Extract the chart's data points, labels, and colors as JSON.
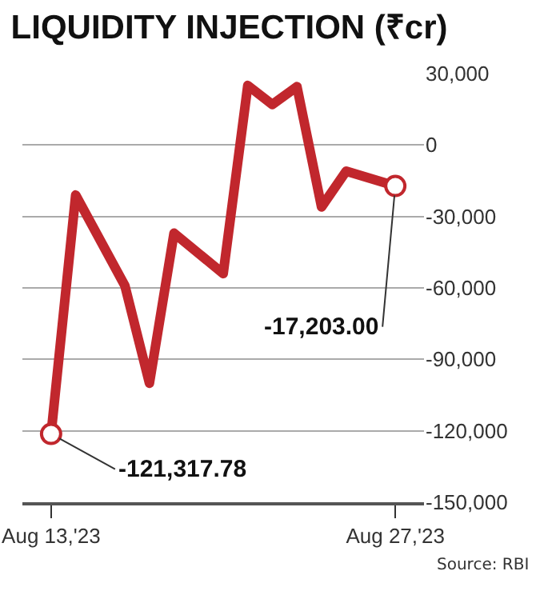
{
  "chart_data": {
    "type": "line",
    "title": "LIQUIDITY INJECTION (₹cr)",
    "x": [
      "2023-08-13",
      "2023-08-14",
      "2023-08-16",
      "2023-08-17",
      "2023-08-18",
      "2023-08-20",
      "2023-08-21",
      "2023-08-22",
      "2023-08-23",
      "2023-08-24",
      "2023-08-25",
      "2023-08-27"
    ],
    "series": [
      {
        "color": "#c1272d",
        "values": [
          -121317.78,
          -21000,
          -59000,
          -100000,
          -37000,
          -54000,
          25000,
          17000,
          24500,
          -26000,
          -11000,
          -17203.0
        ]
      }
    ],
    "xlim": [
      "2023-08-11T20:00",
      "2023-08-28T04:00"
    ],
    "xticks": [
      {
        "value": "2023-08-13",
        "label": "Aug 13,'23"
      },
      {
        "value": "2023-08-27",
        "label": "Aug 27,'23"
      }
    ],
    "ylim": [
      -150000,
      30000
    ],
    "yticks": [
      {
        "value": 30000,
        "label": "30,000"
      },
      {
        "value": 0,
        "label": "0"
      },
      {
        "value": -30000,
        "label": "-30,000"
      },
      {
        "value": -60000,
        "label": "-60,000"
      },
      {
        "value": -90000,
        "label": "-90,000"
      },
      {
        "value": -120000,
        "label": "-120,000"
      },
      {
        "value": -150000,
        "label": "-150,000"
      }
    ],
    "grid": "y",
    "line_style": "solid",
    "annotations": [
      {
        "text": "-121,317.78",
        "x": "2023-08-13",
        "y": -121317.78
      },
      {
        "text": "-17,203.00",
        "x": "2023-08-27",
        "y": -17203.0
      },
      "Source: RBI"
    ]
  }
}
